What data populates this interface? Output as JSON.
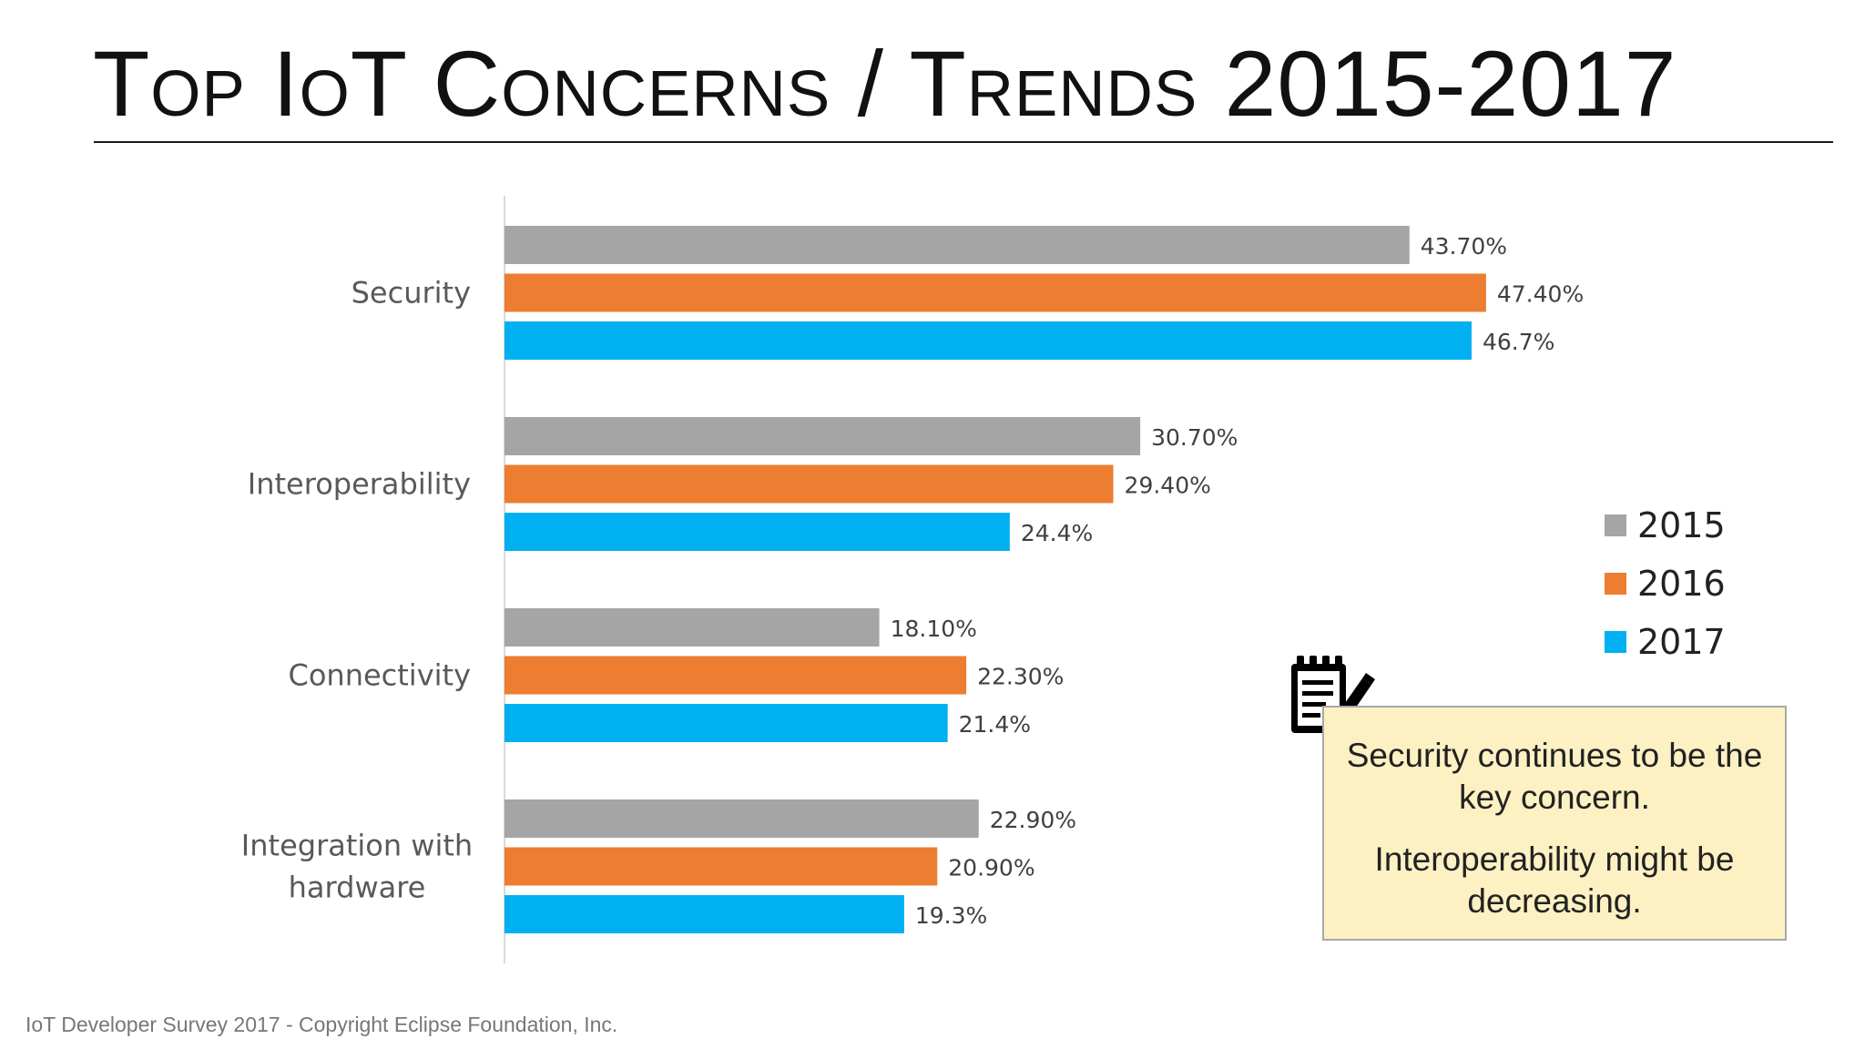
{
  "title": "Top IoT Concerns / Trends 2015-2017",
  "footer": "IoT Developer Survey 2017 - Copyright Eclipse Foundation, Inc.",
  "note": {
    "line1": "Security continues to be the key concern.",
    "line2": "Interoperability might be decreasing."
  },
  "icon": "notepad-pencil-icon",
  "colors": {
    "2015": "#a5a5a5",
    "2016": "#ed7d31",
    "2017": "#00b0f0"
  },
  "chart_data": {
    "type": "bar",
    "orientation": "horizontal",
    "categories": [
      "Security",
      "Interoperability",
      "Connectivity",
      "Integration with hardware"
    ],
    "series": [
      {
        "name": "2015",
        "values": [
          43.7,
          30.7,
          18.1,
          22.9
        ],
        "labels": [
          "43.70%",
          "30.70%",
          "18.10%",
          "22.90%"
        ]
      },
      {
        "name": "2016",
        "values": [
          47.4,
          29.4,
          22.3,
          20.9
        ],
        "labels": [
          "47.40%",
          "29.40%",
          "22.30%",
          "20.90%"
        ]
      },
      {
        "name": "2017",
        "values": [
          46.7,
          24.4,
          21.4,
          19.3
        ],
        "labels": [
          "46.7%",
          "24.4%",
          "21.4%",
          "19.3%"
        ]
      }
    ],
    "xlim": [
      0,
      50
    ],
    "grid": false,
    "legend_position": "right"
  }
}
